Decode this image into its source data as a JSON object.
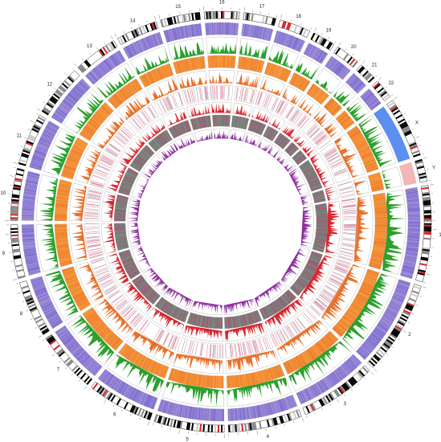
{
  "figure": {
    "type": "circos",
    "chromosomes": [
      {
        "label": "1",
        "size": 248
      },
      {
        "label": "2",
        "size": 242
      },
      {
        "label": "3",
        "size": 198
      },
      {
        "label": "4",
        "size": 190
      },
      {
        "label": "5",
        "size": 181
      },
      {
        "label": "6",
        "size": 171
      },
      {
        "label": "7",
        "size": 159
      },
      {
        "label": "8",
        "size": 145
      },
      {
        "label": "9",
        "size": 138
      },
      {
        "label": "10",
        "size": 134
      },
      {
        "label": "11",
        "size": 135
      },
      {
        "label": "12",
        "size": 133
      },
      {
        "label": "13",
        "size": 114
      },
      {
        "label": "14",
        "size": 107
      },
      {
        "label": "15",
        "size": 102
      },
      {
        "label": "16",
        "size": 90
      },
      {
        "label": "17",
        "size": 83
      },
      {
        "label": "18",
        "size": 80
      },
      {
        "label": "19",
        "size": 59
      },
      {
        "label": "20",
        "size": 64
      },
      {
        "label": "21",
        "size": 47
      },
      {
        "label": "22",
        "size": 51
      },
      {
        "label": "X",
        "size": 156
      },
      {
        "label": "Y",
        "size": 57
      }
    ],
    "tracks": [
      {
        "kind": "ideogram",
        "color": "#000000",
        "accent": "#d62728"
      },
      {
        "kind": "heatmap",
        "color": "#9b8ad6",
        "alt_color": "#6a5acd"
      },
      {
        "kind": "histogram",
        "color": "#2ca02c"
      },
      {
        "kind": "heatmap",
        "color": "#f5963a",
        "alt_color": "#e8702a"
      },
      {
        "kind": "histogram",
        "color": "#e8702a"
      },
      {
        "kind": "ticks",
        "color": "#d98aa0",
        "alt_color": "#c8b0b8"
      },
      {
        "kind": "histogram",
        "color": "#d7262e"
      },
      {
        "kind": "heatmap",
        "color": "#7a7a7a",
        "alt_color": "#d6336c",
        "alt_color2": "#6cc08b"
      },
      {
        "kind": "histogram",
        "color": "#8e2f9e"
      }
    ],
    "special_segments": [
      {
        "chromosome": "X",
        "color": "#5b8ff0",
        "track_index": 1
      },
      {
        "chromosome": "Y",
        "color": "#f4b6b6",
        "track_index": 1
      }
    ]
  }
}
